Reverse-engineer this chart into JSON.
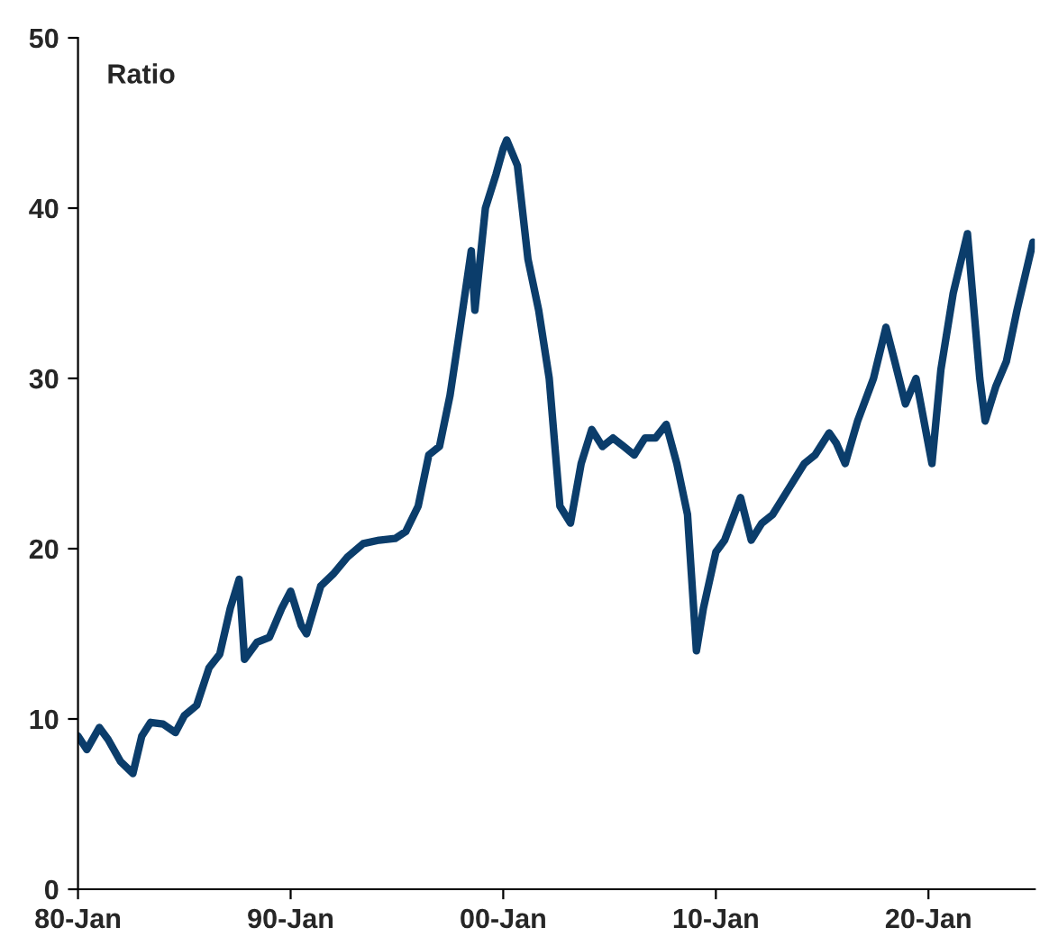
{
  "chart_data": {
    "type": "line",
    "ylabel": "Ratio",
    "x": [
      "1980-01",
      "1980-06",
      "1981-01",
      "1981-06",
      "1982-01",
      "1982-08",
      "1983-01",
      "1983-06",
      "1984-01",
      "1984-08",
      "1985-01",
      "1985-08",
      "1986-03",
      "1986-09",
      "1987-03",
      "1987-08",
      "1987-11",
      "1988-06",
      "1989-01",
      "1989-08",
      "1990-01",
      "1990-07",
      "1990-10",
      "1991-06",
      "1992-01",
      "1992-09",
      "1993-06",
      "1994-03",
      "1994-12",
      "1995-06",
      "1996-01",
      "1996-07",
      "1997-01",
      "1997-07",
      "1997-12",
      "1998-07",
      "1998-09",
      "1999-03",
      "1999-09",
      "2000-01",
      "2000-03",
      "2000-09",
      "2001-03",
      "2001-09",
      "2002-03",
      "2002-09",
      "2003-03",
      "2003-09",
      "2004-03",
      "2004-09",
      "2005-03",
      "2005-09",
      "2006-03",
      "2006-09",
      "2007-03",
      "2007-09",
      "2008-03",
      "2008-09",
      "2009-02",
      "2009-06",
      "2010-01",
      "2010-06",
      "2011-03",
      "2011-09",
      "2012-03",
      "2012-09",
      "2013-06",
      "2014-03",
      "2014-09",
      "2015-05",
      "2015-09",
      "2016-02",
      "2016-09",
      "2017-06",
      "2018-01",
      "2018-06",
      "2018-12",
      "2019-06",
      "2020-03",
      "2020-08",
      "2021-03",
      "2021-11",
      "2022-06",
      "2022-09",
      "2023-03",
      "2023-09",
      "2024-03",
      "2024-12"
    ],
    "series": [
      {
        "color": "#0b3d6b",
        "values": [
          9.0,
          8.2,
          9.5,
          8.8,
          7.5,
          6.8,
          9.0,
          9.8,
          9.7,
          9.2,
          10.2,
          10.8,
          13.0,
          13.8,
          16.5,
          18.2,
          13.5,
          14.5,
          14.8,
          16.5,
          17.5,
          15.5,
          15.0,
          17.8,
          18.5,
          19.5,
          20.3,
          20.5,
          20.6,
          21.0,
          22.5,
          25.5,
          26.0,
          29.0,
          32.5,
          37.5,
          34.0,
          40.0,
          42.0,
          43.5,
          44.0,
          42.5,
          37.0,
          34.0,
          30.0,
          22.5,
          21.5,
          25.0,
          27.0,
          26.0,
          26.5,
          26.0,
          25.5,
          26.5,
          26.5,
          27.3,
          25.0,
          22.0,
          14.0,
          16.5,
          19.8,
          20.5,
          23.0,
          20.5,
          21.5,
          22.0,
          23.5,
          25.0,
          25.5,
          26.8,
          26.2,
          25.0,
          27.5,
          30.0,
          33.0,
          31.0,
          28.5,
          30.0,
          25.0,
          30.5,
          35.0,
          38.5,
          30.0,
          27.5,
          29.5,
          31.0,
          34.0,
          38.0
        ]
      }
    ],
    "xlim": [
      "1980-01",
      "2025-01"
    ],
    "xticks": [
      {
        "value": "1980-01",
        "label": "80-Jan"
      },
      {
        "value": "1990-01",
        "label": "90-Jan"
      },
      {
        "value": "2000-01",
        "label": "00-Jan"
      },
      {
        "value": "2010-01",
        "label": "10-Jan"
      },
      {
        "value": "2020-01",
        "label": "20-Jan"
      }
    ],
    "ylim": [
      0,
      50
    ],
    "yticks": [
      0,
      10,
      20,
      30,
      40,
      50
    ],
    "grid": false,
    "legend": false,
    "line_style": "solid",
    "marker": "none"
  }
}
